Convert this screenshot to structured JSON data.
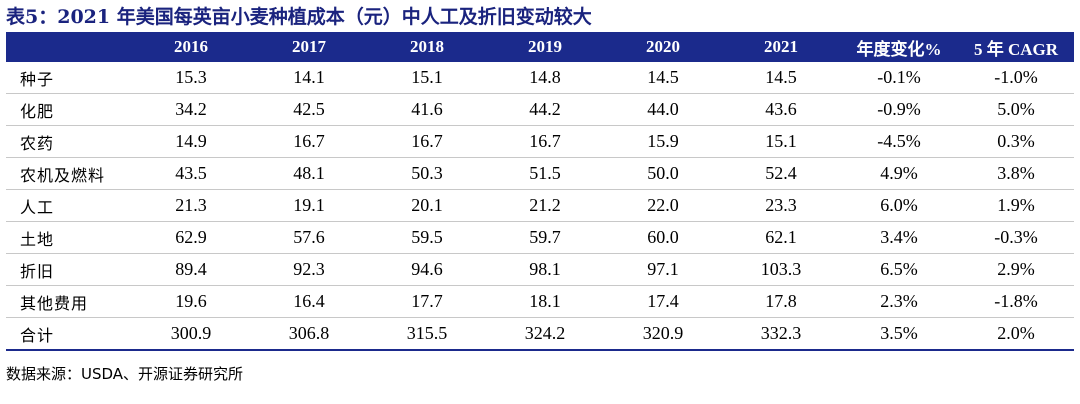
{
  "title": "表5：2021 年美国每英亩小麦种植成本（元）中人工及折旧变动较大",
  "headers": [
    "",
    "2016",
    "2017",
    "2018",
    "2019",
    "2020",
    "2021",
    "年度变化%",
    "5 年 CAGR"
  ],
  "rows": [
    {
      "label": "种子",
      "values": [
        "15.3",
        "14.1",
        "15.1",
        "14.8",
        "14.5",
        "14.5",
        "-0.1%",
        "-1.0%"
      ]
    },
    {
      "label": "化肥",
      "values": [
        "34.2",
        "42.5",
        "41.6",
        "44.2",
        "44.0",
        "43.6",
        "-0.9%",
        "5.0%"
      ]
    },
    {
      "label": "农药",
      "values": [
        "14.9",
        "16.7",
        "16.7",
        "16.7",
        "15.9",
        "15.1",
        "-4.5%",
        "0.3%"
      ]
    },
    {
      "label": "农机及燃料",
      "values": [
        "43.5",
        "48.1",
        "50.3",
        "51.5",
        "50.0",
        "52.4",
        "4.9%",
        "3.8%"
      ]
    },
    {
      "label": "人工",
      "values": [
        "21.3",
        "19.1",
        "20.1",
        "21.2",
        "22.0",
        "23.3",
        "6.0%",
        "1.9%"
      ]
    },
    {
      "label": "土地",
      "values": [
        "62.9",
        "57.6",
        "59.5",
        "59.7",
        "60.0",
        "62.1",
        "3.4%",
        "-0.3%"
      ]
    },
    {
      "label": "折旧",
      "values": [
        "89.4",
        "92.3",
        "94.6",
        "98.1",
        "97.1",
        "103.3",
        "6.5%",
        "2.9%"
      ]
    },
    {
      "label": "其他费用",
      "values": [
        "19.6",
        "16.4",
        "17.7",
        "18.1",
        "17.4",
        "17.8",
        "2.3%",
        "-1.8%"
      ]
    },
    {
      "label": "合计",
      "values": [
        "300.9",
        "306.8",
        "315.5",
        "324.2",
        "320.9",
        "332.3",
        "3.5%",
        "2.0%"
      ]
    }
  ],
  "source": "数据来源：USDA、开源证券研究所",
  "colors": {
    "header_bg": "#1b2a8c",
    "title": "#1a237e"
  }
}
